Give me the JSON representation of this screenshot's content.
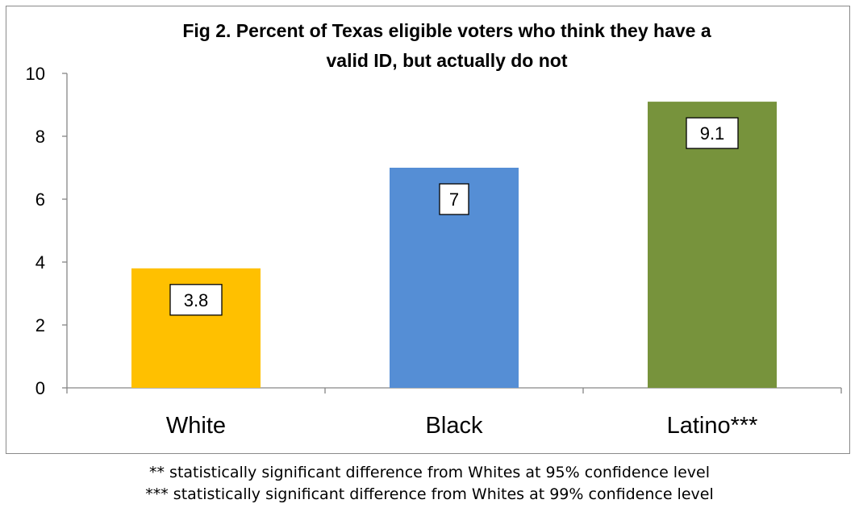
{
  "chart_data": {
    "type": "bar",
    "title": "Fig 2. Percent of Texas eligible voters who think they have a valid ID, but actually do not",
    "title_lines": [
      "Fig 2. Percent of Texas eligible voters who think they have a",
      "valid ID, but actually do not"
    ],
    "categories": [
      "White",
      "Black",
      "Latino***"
    ],
    "values": [
      3.8,
      7,
      9.1
    ],
    "data_labels": [
      "3.8",
      "7",
      "9.1"
    ],
    "colors": [
      "#FFC000",
      "#558ED5",
      "#77933C"
    ],
    "ylim": [
      0,
      10
    ],
    "yticks": [
      0,
      2,
      4,
      6,
      8,
      10
    ],
    "xlabel": "",
    "ylabel": "",
    "grid": false,
    "legend": "none"
  },
  "footnotes": [
    "** statistically significant difference from Whites at 95% confidence level",
    "*** statistically significant difference from Whites at 99% confidence level"
  ]
}
